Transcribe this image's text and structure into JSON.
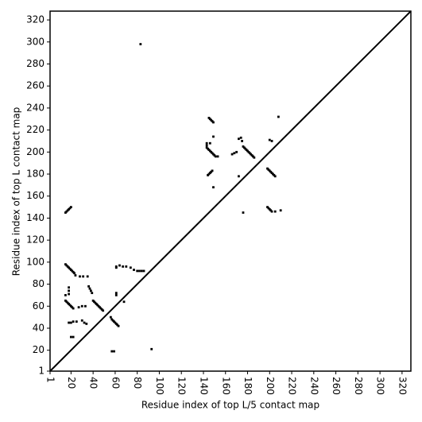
{
  "chart_data": {
    "type": "scatter",
    "xlabel": "Residue index of top L/5 contact map",
    "ylabel": "Residue index of top L contact map",
    "xlim": [
      1,
      328
    ],
    "ylim": [
      1,
      328
    ],
    "xticks": [
      1,
      20,
      40,
      60,
      80,
      100,
      120,
      140,
      160,
      180,
      200,
      220,
      240,
      260,
      280,
      300,
      320
    ],
    "yticks": [
      1,
      20,
      40,
      60,
      80,
      100,
      120,
      140,
      160,
      180,
      200,
      220,
      240,
      260,
      280,
      300,
      320
    ],
    "diagonal": true,
    "color": "#000000",
    "x": [
      15,
      16,
      17,
      18,
      19,
      20,
      15,
      16,
      17,
      18,
      19,
      20,
      21,
      22,
      23,
      24,
      18,
      18,
      18,
      15,
      15,
      16,
      17,
      18,
      19,
      20,
      21,
      22,
      27,
      30,
      33,
      28,
      31,
      35,
      36,
      37,
      38,
      39,
      40,
      41,
      42,
      43,
      44,
      45,
      46,
      47,
      48,
      49,
      18,
      20,
      22,
      25,
      30,
      32,
      34,
      20,
      22,
      56,
      57,
      58,
      59,
      60,
      61,
      62,
      63,
      57,
      59,
      61,
      61,
      61,
      61,
      64,
      67,
      70,
      74,
      77,
      80,
      82,
      84,
      86,
      68,
      83,
      93,
      145,
      146,
      147,
      148,
      149,
      149,
      143,
      143,
      144,
      145,
      146,
      147,
      148,
      149,
      150,
      151,
      153,
      146,
      143,
      144,
      145,
      146,
      147,
      148,
      149,
      166,
      168,
      170,
      172,
      174,
      175,
      176,
      177,
      178,
      179,
      180,
      181,
      182,
      183,
      184,
      185,
      186,
      172,
      176,
      198,
      199,
      200,
      201,
      202,
      203,
      204,
      205,
      198,
      199,
      200,
      201,
      202,
      205,
      210,
      200,
      202,
      208
    ],
    "y": [
      145,
      146,
      147,
      148,
      149,
      150,
      98,
      97,
      96,
      95,
      94,
      93,
      92,
      91,
      90,
      88,
      77,
      74,
      71,
      70,
      65,
      64,
      63,
      62,
      61,
      60,
      59,
      58,
      59,
      60,
      60,
      87,
      87,
      87,
      78,
      76,
      74,
      72,
      65,
      64,
      63,
      62,
      61,
      60,
      59,
      58,
      57,
      56,
      45,
      45,
      46,
      46,
      47,
      45,
      44,
      32,
      32,
      50,
      48,
      47,
      46,
      45,
      44,
      43,
      42,
      19,
      19,
      96,
      95,
      72,
      70,
      97,
      96,
      96,
      95,
      93,
      92,
      92,
      92,
      92,
      64,
      298,
      21,
      231,
      230,
      229,
      228,
      227,
      214,
      206,
      204,
      203,
      202,
      201,
      200,
      199,
      198,
      197,
      196,
      196,
      208,
      208,
      179,
      180,
      181,
      182,
      183,
      168,
      198,
      199,
      200,
      212,
      213,
      210,
      205,
      204,
      203,
      202,
      201,
      200,
      199,
      198,
      197,
      196,
      195,
      178,
      145,
      185,
      184,
      183,
      182,
      181,
      180,
      179,
      178,
      150,
      149,
      148,
      147,
      146,
      146,
      147,
      211,
      210,
      232
    ]
  }
}
